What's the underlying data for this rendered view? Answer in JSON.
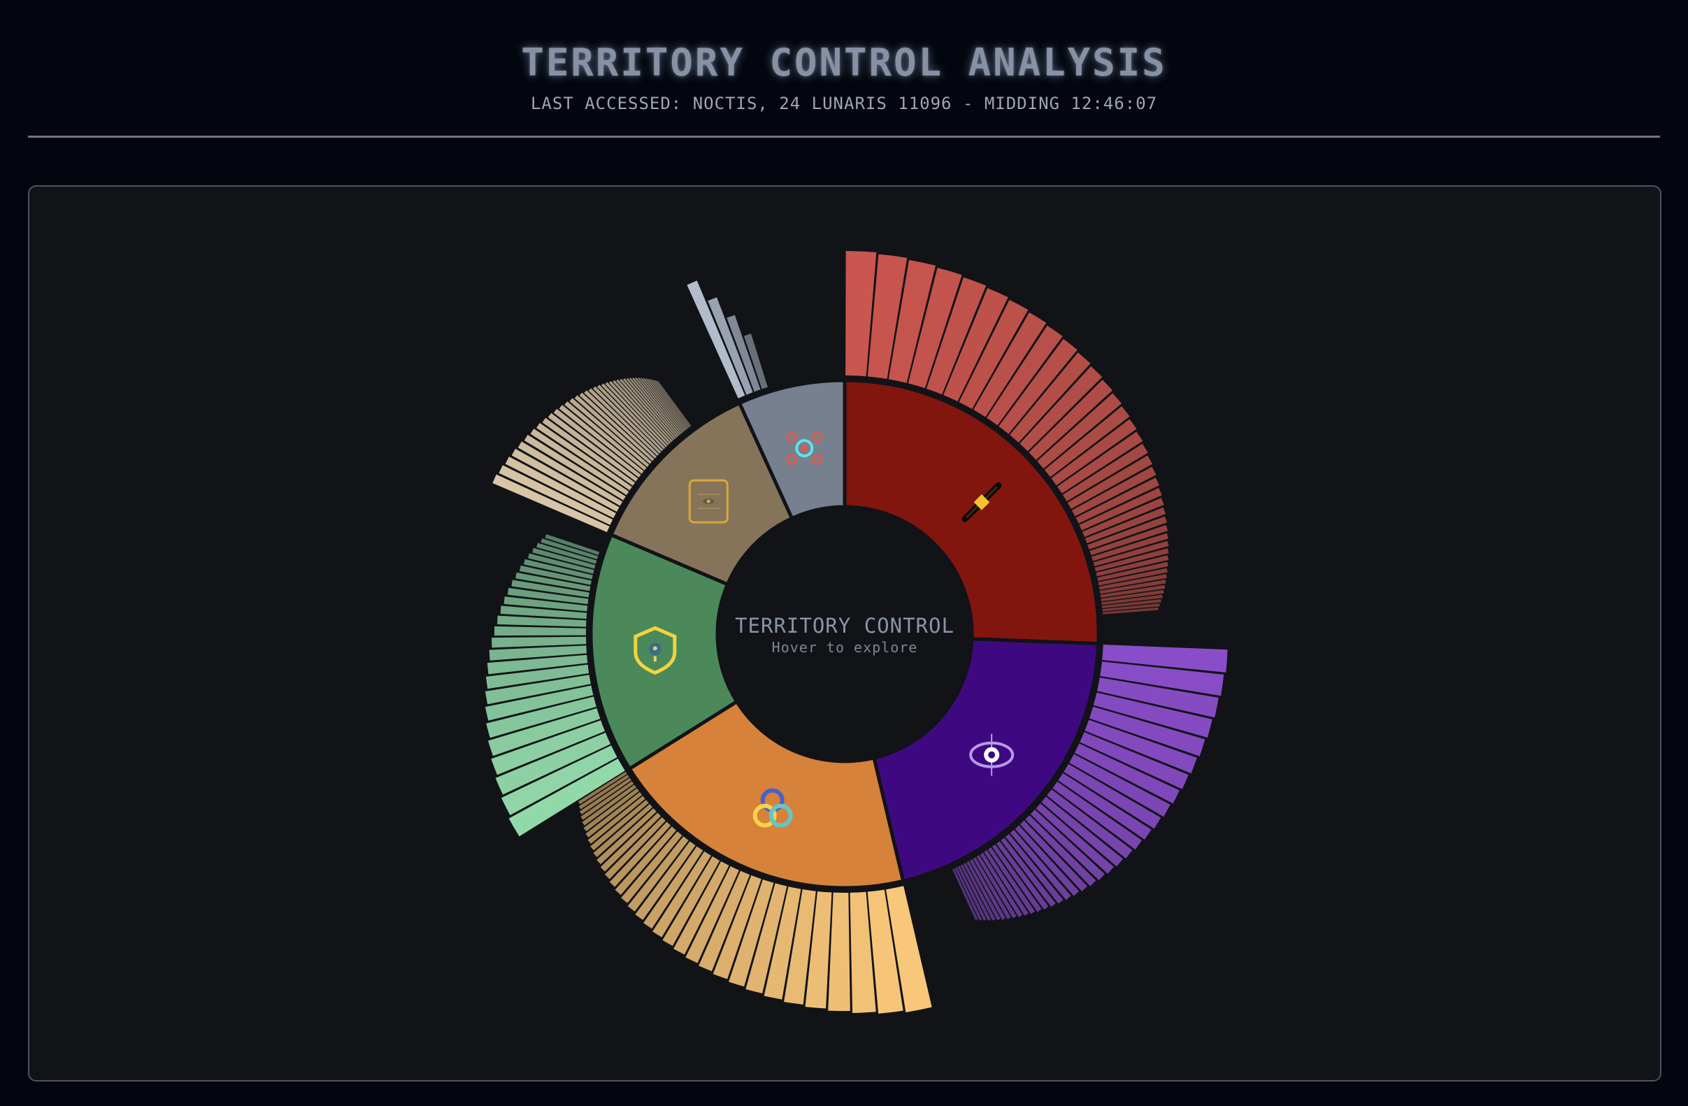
{
  "header": {
    "title": "TERRITORY CONTROL ANALYSIS",
    "subtitle": "LAST ACCESSED: NOCTIS, 24 LUNARIS 11096 - MIDDING 12:46:07"
  },
  "chart_data": {
    "type": "sunburst",
    "center_title": "TERRITORY CONTROL",
    "center_hint": "Hover to explore",
    "segments": [
      {
        "id": "red",
        "icon": "crossed-sword-icon",
        "value": 25.6,
        "inner_color": "#82160f",
        "outer_color": "#c9564f",
        "children": 40,
        "children_extent": 0.93
      },
      {
        "id": "purple",
        "icon": "eye-icon",
        "value": 20.7,
        "inner_color": "#3e0980",
        "outer_color": "#8a4dc9",
        "children": 36,
        "children_extent": 0.85
      },
      {
        "id": "orange",
        "icon": "rings-icon",
        "value": 19.8,
        "inner_color": "#d6823a",
        "outer_color": "#f9c77a",
        "children": 34,
        "children_extent": 1.0
      },
      {
        "id": "green",
        "icon": "shield-icon",
        "value": 15.3,
        "inner_color": "#4b895b",
        "outer_color": "#92d9aa",
        "children": 26,
        "children_extent": 0.92
      },
      {
        "id": "tan",
        "icon": "archive-icon",
        "value": 11.8,
        "inner_color": "#86745a",
        "outer_color": "#d8c5a6",
        "children": 40,
        "children_extent": 0.72
      },
      {
        "id": "slate",
        "icon": "network-icon",
        "value": 6.8,
        "inner_color": "#76808f",
        "outer_color": "#b2bccb",
        "children": 4,
        "children_extent": 0.3
      }
    ]
  }
}
